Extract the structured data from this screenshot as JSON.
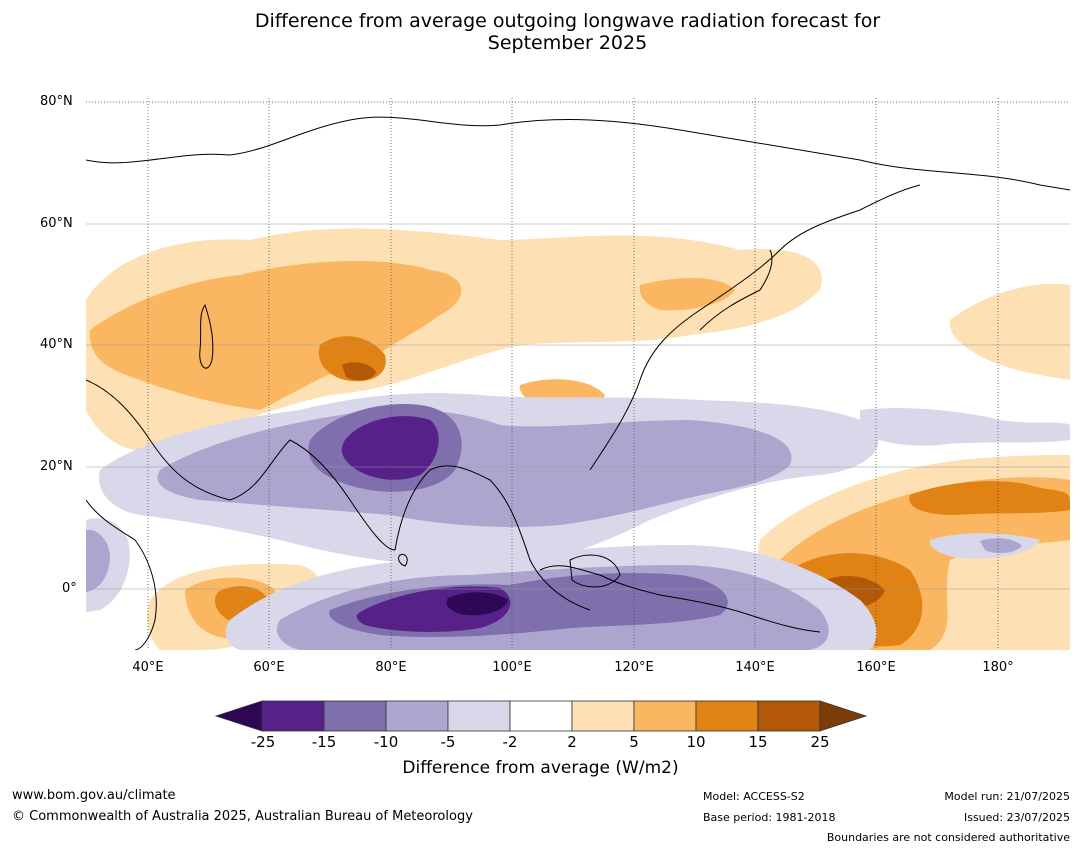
{
  "title_line1": "Difference from average outgoing longwave radiation forecast for",
  "title_line2": "September 2025",
  "lat_labels": [
    "80°N",
    "60°N",
    "40°N",
    "20°N",
    "0°"
  ],
  "lon_labels": [
    "40°E",
    "60°E",
    "80°E",
    "100°E",
    "120°E",
    "140°E",
    "160°E",
    "180°"
  ],
  "colorbar": {
    "ticks": [
      "-25",
      "-15",
      "-10",
      "-5",
      "-2",
      "2",
      "5",
      "10",
      "15",
      "25"
    ],
    "colors": [
      "#2e0854",
      "#57218a",
      "#7f6fad",
      "#aca6cf",
      "#d8d8ea",
      "#ffffff",
      "#fde0b3",
      "#fbb661",
      "#e08214",
      "#b35806",
      "#7f3b08"
    ],
    "label": "Difference from average (W/m2)"
  },
  "footer": {
    "url": "www.bom.gov.au/climate",
    "copyright": "© Commonwealth of Australia 2025, Australian Bureau of Meteorology",
    "model": "Model: ACCESS-S2",
    "base_period": "Base period: 1981-2018",
    "model_run": "Model run: 21/07/2025",
    "issued": "Issued: 23/07/2025",
    "disclaimer": "Boundaries are not considered authoritative"
  }
}
